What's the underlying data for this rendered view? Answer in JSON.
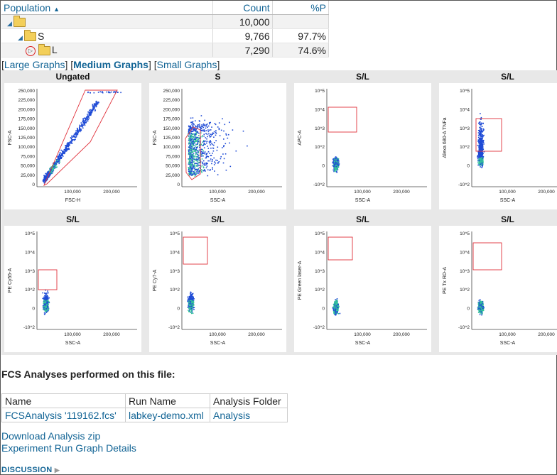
{
  "population_table": {
    "headers": {
      "population": "Population",
      "count": "Count",
      "percent": "%P"
    },
    "rows": [
      {
        "name": "",
        "count": "10,000",
        "percent": ""
      },
      {
        "name": "S",
        "count": "9,766",
        "percent": "97.7%"
      },
      {
        "name": "L",
        "count": "7,290",
        "percent": "74.6%"
      }
    ]
  },
  "graph_sizes": {
    "large": "Large Graphs",
    "medium": "Medium Graphs",
    "small": "Small Graphs",
    "current": "medium"
  },
  "graphs": [
    {
      "title": "Ungated",
      "xlabel": "FSC-H",
      "ylabel": "FSC-A",
      "xticks": [
        "100,000",
        "200,000"
      ],
      "yticks": [
        "250,000",
        "225,000",
        "200,000",
        "175,000",
        "150,000",
        "125,000",
        "100,000",
        "75,000",
        "50,000",
        "25,000",
        "0"
      ]
    },
    {
      "title": "S",
      "xlabel": "SSC-A",
      "ylabel": "FSC-A",
      "xticks": [
        "100,000",
        "200,000"
      ],
      "yticks": [
        "250,000",
        "225,000",
        "200,000",
        "175,000",
        "150,000",
        "125,000",
        "100,000",
        "75,000",
        "50,000",
        "25,000",
        "0"
      ]
    },
    {
      "title": "S/L",
      "xlabel": "SSC-A",
      "ylabel": "APC-A",
      "xticks": [
        "100,000",
        "200,000"
      ],
      "yticks": [
        "10^5",
        "10^4",
        "10^3",
        "10^2",
        "0",
        "-10^2"
      ]
    },
    {
      "title": "S/L",
      "xlabel": "SSC-A",
      "ylabel": "Alexa 680-A TNFa",
      "xticks": [
        "100,000",
        "200,000"
      ],
      "yticks": [
        "10^5",
        "10^4",
        "10^3",
        "10^2",
        "0",
        "-10^2"
      ]
    },
    {
      "title": "S/L",
      "xlabel": "SSC-A",
      "ylabel": "PE Cy55-A",
      "xticks": [
        "100,000",
        "200,000"
      ],
      "yticks": [
        "10^5",
        "10^4",
        "10^3",
        "10^2",
        "0",
        "-10^2"
      ]
    },
    {
      "title": "S/L",
      "xlabel": "SSC-A",
      "ylabel": "PE Cy7-A",
      "xticks": [
        "100,000",
        "200,000"
      ],
      "yticks": [
        "10^5",
        "10^4",
        "10^3",
        "10^2",
        "0",
        "-10^2"
      ]
    },
    {
      "title": "S/L",
      "xlabel": "SSC-A",
      "ylabel": "PE Green laser-A",
      "xticks": [
        "100,000",
        "200,000"
      ],
      "yticks": [
        "10^5",
        "10^4",
        "10^3",
        "10^2",
        "0",
        "-10^2"
      ]
    },
    {
      "title": "S/L",
      "xlabel": "SSC-A",
      "ylabel": "PE Tx RD-A",
      "xticks": [
        "100,000",
        "200,000"
      ],
      "yticks": [
        "10^5",
        "10^4",
        "10^3",
        "10^2",
        "0",
        "-10^2"
      ]
    }
  ],
  "analyses": {
    "title": "FCS Analyses performed on this file:",
    "headers": [
      "Name",
      "Run Name",
      "Analysis Folder"
    ],
    "rows": [
      [
        "FCSAnalysis '119162.fcs'",
        "labkey-demo.xml",
        "Analysis"
      ]
    ]
  },
  "links": {
    "download": "Download Analysis zip",
    "graph": "Experiment Run Graph Details"
  },
  "discussion": "DISCUSSION",
  "colors": {
    "link": "#126495",
    "gate": "#e0303a",
    "dots": "#1f4bd6",
    "dense": "#34c39a"
  }
}
